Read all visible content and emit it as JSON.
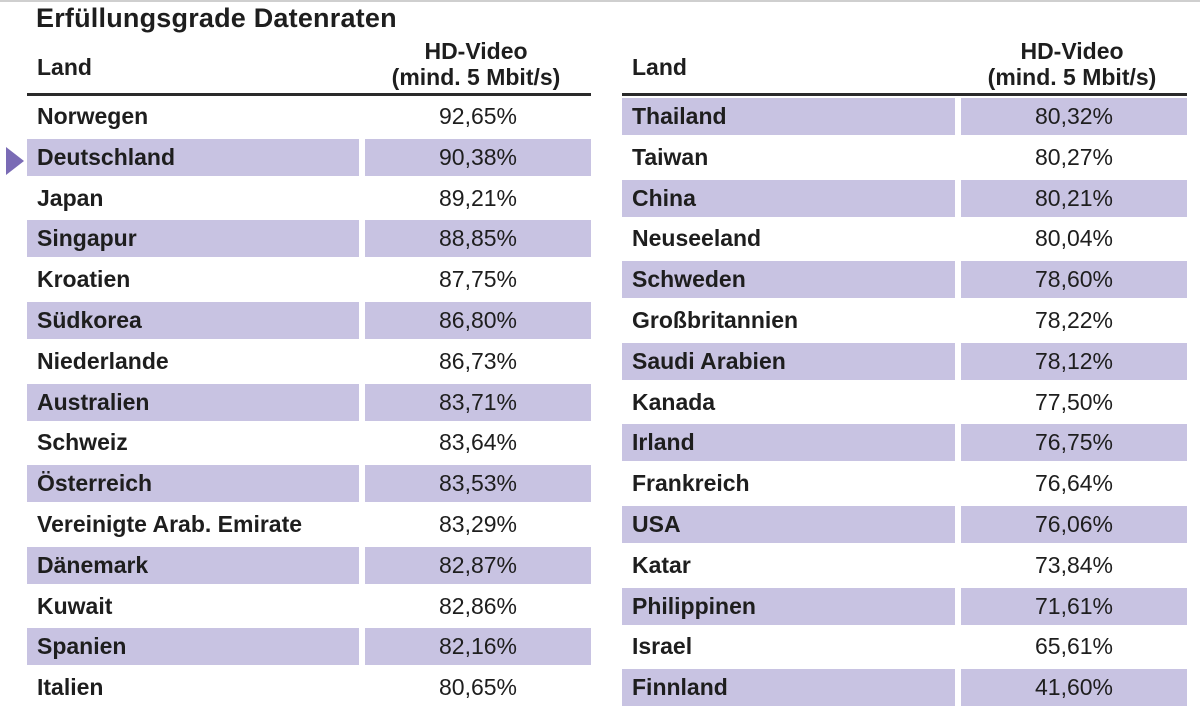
{
  "title": "Erfüllungsgrade Datenraten",
  "header": {
    "land": "Land",
    "value_line1": "HD-Video",
    "value_line2": "(mind. 5 Mbit/s)"
  },
  "left_rows": [
    {
      "land": "Norwegen",
      "value": "92,65%"
    },
    {
      "land": "Deutschland",
      "value": "90,38%"
    },
    {
      "land": "Japan",
      "value": "89,21%"
    },
    {
      "land": "Singapur",
      "value": "88,85%"
    },
    {
      "land": "Kroatien",
      "value": "87,75%"
    },
    {
      "land": "Südkorea",
      "value": "86,80%"
    },
    {
      "land": "Niederlande",
      "value": "86,73%"
    },
    {
      "land": "Australien",
      "value": "83,71%"
    },
    {
      "land": "Schweiz",
      "value": "83,64%"
    },
    {
      "land": "Österreich",
      "value": "83,53%"
    },
    {
      "land": "Vereinigte Arab. Emirate",
      "value": "83,29%"
    },
    {
      "land": "Dänemark",
      "value": "82,87%"
    },
    {
      "land": "Kuwait",
      "value": "82,86%"
    },
    {
      "land": "Spanien",
      "value": "82,16%"
    },
    {
      "land": "Italien",
      "value": "80,65%"
    }
  ],
  "right_rows": [
    {
      "land": "Thailand",
      "value": "80,32%"
    },
    {
      "land": "Taiwan",
      "value": "80,27%"
    },
    {
      "land": "China",
      "value": "80,21%"
    },
    {
      "land": "Neuseeland",
      "value": "80,04%"
    },
    {
      "land": "Schweden",
      "value": "78,60%"
    },
    {
      "land": "Großbritannien",
      "value": "78,22%"
    },
    {
      "land": "Saudi Arabien",
      "value": "78,12%"
    },
    {
      "land": "Kanada",
      "value": "77,50%"
    },
    {
      "land": "Irland",
      "value": "76,75%"
    },
    {
      "land": "Frankreich",
      "value": "76,64%"
    },
    {
      "land": "USA",
      "value": "76,06%"
    },
    {
      "land": "Katar",
      "value": "73,84%"
    },
    {
      "land": "Philippinen",
      "value": "71,61%"
    },
    {
      "land": "Israel",
      "value": "65,61%"
    },
    {
      "land": "Finnland",
      "value": "41,60%"
    }
  ],
  "colors": {
    "row_shade": "#c8c3e2",
    "marker": "#7a6bb5"
  },
  "chart_data": {
    "type": "table",
    "title": "Erfüllungsgrade Datenraten",
    "columns": [
      "Land",
      "HD-Video (mind. 5 Mbit/s)"
    ],
    "highlighted": "Deutschland",
    "rows": [
      [
        "Norwegen",
        92.65
      ],
      [
        "Deutschland",
        90.38
      ],
      [
        "Japan",
        89.21
      ],
      [
        "Singapur",
        88.85
      ],
      [
        "Kroatien",
        87.75
      ],
      [
        "Südkorea",
        86.8
      ],
      [
        "Niederlande",
        86.73
      ],
      [
        "Australien",
        83.71
      ],
      [
        "Schweiz",
        83.64
      ],
      [
        "Österreich",
        83.53
      ],
      [
        "Vereinigte Arab. Emirate",
        83.29
      ],
      [
        "Dänemark",
        82.87
      ],
      [
        "Kuwait",
        82.86
      ],
      [
        "Spanien",
        82.16
      ],
      [
        "Italien",
        80.65
      ],
      [
        "Thailand",
        80.32
      ],
      [
        "Taiwan",
        80.27
      ],
      [
        "China",
        80.21
      ],
      [
        "Neuseeland",
        80.04
      ],
      [
        "Schweden",
        78.6
      ],
      [
        "Großbritannien",
        78.22
      ],
      [
        "Saudi Arabien",
        78.12
      ],
      [
        "Kanada",
        77.5
      ],
      [
        "Irland",
        76.75
      ],
      [
        "Frankreich",
        76.64
      ],
      [
        "USA",
        76.06
      ],
      [
        "Katar",
        73.84
      ],
      [
        "Philippinen",
        71.61
      ],
      [
        "Israel",
        65.61
      ],
      [
        "Finnland",
        41.6
      ]
    ]
  }
}
